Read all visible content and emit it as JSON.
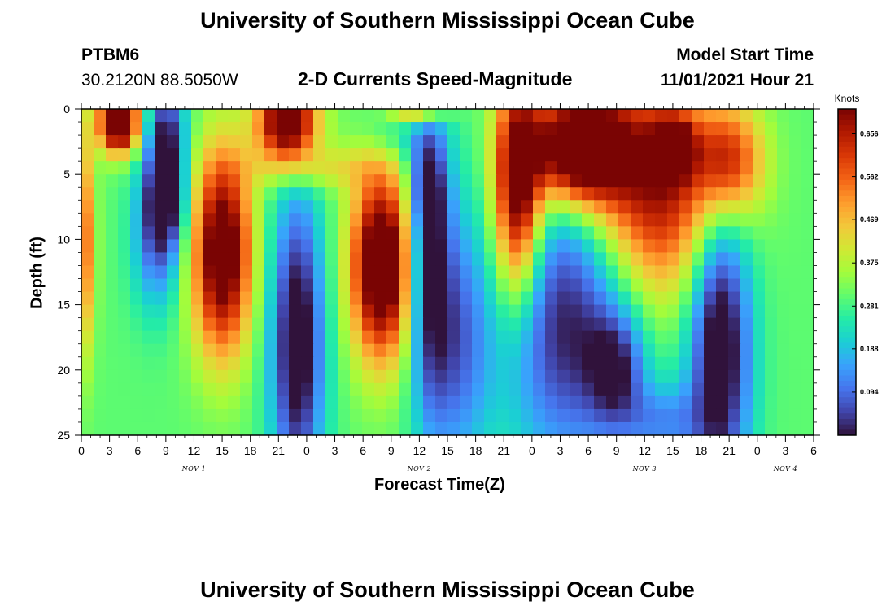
{
  "header": {
    "title": "University of Southern Mississippi Ocean Cube",
    "station": "PTBM6",
    "coords": "30.2120N  88.5050W",
    "subtitle": "2-D Currents Speed-Magnitude",
    "model_label": "Model Start Time",
    "model_time": "11/01/2021 Hour 21"
  },
  "footer": {
    "title": "University of Southern Mississippi Ocean Cube"
  },
  "colors": {
    "ramp": [
      "#30123b",
      "#4145ab",
      "#4675ed",
      "#39a2fc",
      "#1bcfd4",
      "#24eca6",
      "#61fc6c",
      "#a4fc3b",
      "#d1e834",
      "#f3c63a",
      "#fe9b2d",
      "#f36315",
      "#d93806",
      "#b11901",
      "#7a0403"
    ]
  },
  "chart_data": {
    "type": "heatmap",
    "title": "2-D Currents Speed-Magnitude",
    "xlabel": "Forecast Time(Z)",
    "ylabel": "Depth (ft)",
    "xlim": [
      0,
      78
    ],
    "ylim": [
      0,
      25
    ],
    "x_tick_values": [
      0,
      3,
      6,
      9,
      12,
      15,
      18,
      21,
      24,
      27,
      30,
      33,
      36,
      39,
      42,
      45,
      48,
      51,
      54,
      57,
      60,
      63,
      66,
      69,
      72,
      75,
      78
    ],
    "x_tick_labels": [
      "0",
      "3",
      "6",
      "9",
      "12",
      "15",
      "18",
      "21",
      "0",
      "3",
      "6",
      "9",
      "12",
      "15",
      "18",
      "21",
      "0",
      "3",
      "6",
      "9",
      "12",
      "15",
      "18",
      "21",
      "0",
      "3",
      "6"
    ],
    "y_ticks": [
      0,
      5,
      10,
      15,
      20,
      25
    ],
    "y_tick_labels": [
      "0",
      "5",
      "10",
      "15",
      "20",
      "25"
    ],
    "day_labels": [
      {
        "label": "NOV 1",
        "x": 12
      },
      {
        "label": "NOV 2",
        "x": 36
      },
      {
        "label": "NOV 3",
        "x": 60
      },
      {
        "label": "NOV 4",
        "x": 75
      }
    ],
    "colorbar": {
      "label": "Knots",
      "min": 0.0,
      "max": 0.71,
      "ticks": [
        0.094,
        0.188,
        0.281,
        0.375,
        0.469,
        0.562,
        0.656
      ],
      "tick_labels": [
        "0.094",
        "0.188",
        "0.281",
        "0.375",
        "0.469",
        "0.562",
        "0.656"
      ]
    },
    "grid": {
      "nx": 60,
      "ny": 25
    },
    "surface_features": [
      {
        "t": 4,
        "d": 1,
        "v": 0.6,
        "st": 1.5,
        "sd": 1.6
      },
      {
        "t": 9,
        "d": 1,
        "v": -0.2,
        "st": 1.5,
        "sd": 2.0
      },
      {
        "t": 9,
        "d": 6,
        "v": -0.32,
        "st": 1.5,
        "sd": 3.0
      },
      {
        "t": 8,
        "d": 10,
        "v": -0.2,
        "st": 1.8,
        "sd": 4.0
      },
      {
        "t": 15,
        "d": 11,
        "v": 0.5,
        "st": 2.2,
        "sd": 5.5
      },
      {
        "t": 22,
        "d": 1,
        "v": 0.55,
        "st": 2.2,
        "sd": 2.0
      },
      {
        "t": 23,
        "d": 18,
        "v": -0.36,
        "st": 2.0,
        "sd": 8.0
      },
      {
        "t": 25,
        "d": 4.5,
        "v": 0.12,
        "st": 5.0,
        "sd": 1.2
      },
      {
        "t": 32,
        "d": 12,
        "v": 0.55,
        "st": 2.3,
        "sd": 5.0
      },
      {
        "t": 33,
        "d": 2,
        "v": -0.08,
        "st": 2.0,
        "sd": 2.0
      },
      {
        "t": 37,
        "d": 10,
        "v": -0.3,
        "st": 1.6,
        "sd": 9.0
      },
      {
        "t": 37,
        "d": 6,
        "v": -0.1,
        "st": 1.2,
        "sd": 2.0
      },
      {
        "t": 36,
        "d": 0,
        "v": 0.3,
        "st": 2.0,
        "sd": 0.8
      },
      {
        "t": 40,
        "d": 18,
        "v": -0.2,
        "st": 2.5,
        "sd": 7.0
      },
      {
        "t": 46.5,
        "d": 6,
        "v": 0.5,
        "st": 1.8,
        "sd": 6.0
      },
      {
        "t": 52,
        "d": 16,
        "v": -0.3,
        "st": 5.0,
        "sd": 8.0
      },
      {
        "t": 57,
        "d": 20,
        "v": -0.2,
        "st": 2.0,
        "sd": 3.0
      },
      {
        "t": 53,
        "d": 3,
        "v": 0.6,
        "st": 3.5,
        "sd": 3.0
      },
      {
        "t": 61,
        "d": 6,
        "v": 0.4,
        "st": 5.0,
        "sd": 6.0
      },
      {
        "t": 63,
        "d": 3,
        "v": 0.35,
        "st": 1.5,
        "sd": 1.5
      },
      {
        "t": 68,
        "d": 18,
        "v": -0.38,
        "st": 2.3,
        "sd": 8.0
      },
      {
        "t": 69,
        "d": 4,
        "v": 0.3,
        "st": 2.5,
        "sd": 3.0
      },
      {
        "t": 62,
        "d": 24,
        "v": -0.15,
        "st": 3.0,
        "sd": 2.0
      },
      {
        "t": 0.3,
        "d": 10,
        "v": 0.25,
        "st": 0.8,
        "sd": 6.0
      }
    ]
  }
}
